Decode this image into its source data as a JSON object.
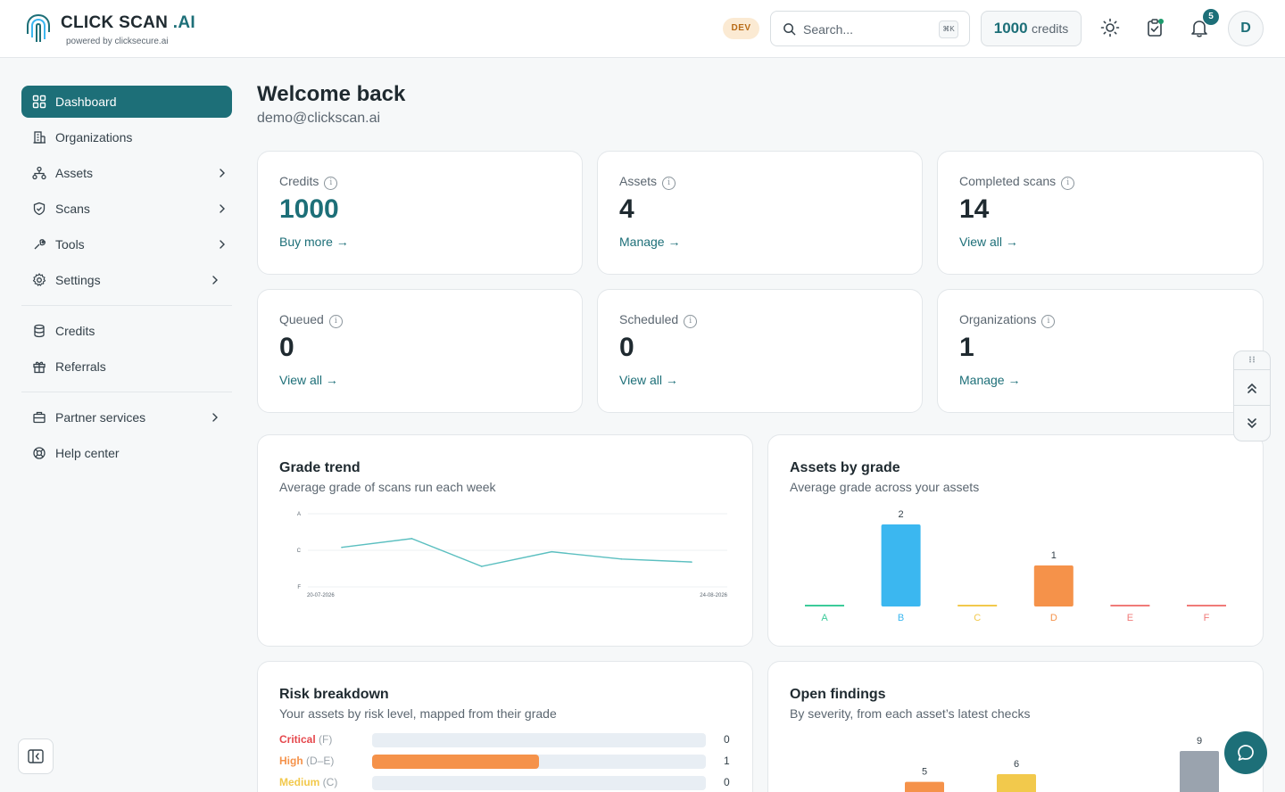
{
  "header": {
    "brand_main": "CLICK SCAN",
    "brand_ai": ".AI",
    "powered_by": "powered by clicksecure.ai",
    "env_badge": "DEV",
    "search_placeholder": "Search...",
    "search_shortcut": "⌘K",
    "credits_value": "1000",
    "credits_label": "credits",
    "notification_count": "5",
    "avatar_initial": "D",
    "icons": [
      "sun-icon",
      "clipboard-check-icon",
      "bell-icon"
    ]
  },
  "sidebar": {
    "items": [
      {
        "label": "Dashboard",
        "icon": "grid-icon",
        "active": true,
        "chevron": false
      },
      {
        "label": "Organizations",
        "icon": "building-icon",
        "active": false,
        "chevron": false
      },
      {
        "label": "Assets",
        "icon": "network-icon",
        "active": false,
        "chevron": true
      },
      {
        "label": "Scans",
        "icon": "shield-icon",
        "active": false,
        "chevron": true
      },
      {
        "label": "Tools",
        "icon": "wrench-icon",
        "active": false,
        "chevron": true
      },
      {
        "label": "Settings",
        "icon": "gear-icon",
        "active": false,
        "chevron": true
      },
      {
        "label": "Credits",
        "icon": "database-icon",
        "active": false,
        "chevron": false
      },
      {
        "label": "Referrals",
        "icon": "gift-icon",
        "active": false,
        "chevron": false
      },
      {
        "label": "Partner services",
        "icon": "briefcase-icon",
        "active": false,
        "chevron": true
      },
      {
        "label": "Help center",
        "icon": "lifebuoy-icon",
        "active": false,
        "chevron": false
      }
    ]
  },
  "main": {
    "welcome": "Welcome back",
    "email": "demo@clickscan.ai",
    "stats": [
      {
        "label": "Credits",
        "value": "1000",
        "link": "Buy more →"
      },
      {
        "label": "Assets",
        "value": "4",
        "link": "Manage →"
      },
      {
        "label": "Completed scans",
        "value": "14",
        "link": "View all →"
      },
      {
        "label": "Queued",
        "value": "0",
        "link": "View all →"
      },
      {
        "label": "Scheduled",
        "value": "0",
        "link": "View all →"
      },
      {
        "label": "Organizations",
        "value": "1",
        "link": "Manage →"
      }
    ],
    "grade_trend": {
      "title": "Grade trend",
      "subtitle": "Average grade of scans run each week"
    },
    "assets_by_grade": {
      "title": "Assets by grade",
      "subtitle": "Average grade across your assets"
    },
    "risk_breakdown": {
      "title": "Risk breakdown",
      "subtitle": "Your assets by risk level, mapped from their grade",
      "rows": [
        {
          "name": "Critical",
          "grade": "(F)",
          "count": "0",
          "fraction": 0,
          "color": "#e5484d"
        },
        {
          "name": "High",
          "grade": "(D–E)",
          "count": "1",
          "fraction": 0.5,
          "color": "#f5924a"
        },
        {
          "name": "Medium",
          "grade": "(C)",
          "count": "0",
          "fraction": 0,
          "color": "#f2c94c"
        }
      ]
    },
    "open_findings": {
      "title": "Open findings",
      "subtitle": "By severity, from each asset’s latest checks"
    }
  },
  "chart_data": [
    {
      "type": "line",
      "y_ticks": [
        "A",
        "C",
        "F"
      ],
      "x_ticks": [
        "20-07-2026",
        "24-08-2026"
      ],
      "values": [
        2.3,
        1.7,
        3.6,
        2.6,
        3.1,
        3.3
      ],
      "y_scale": "0 = A (top), 5 = F (bottom)",
      "color": "#5bbfc0"
    },
    {
      "type": "bar",
      "categories": [
        "A",
        "B",
        "C",
        "D",
        "E",
        "F"
      ],
      "values": [
        0,
        2,
        0,
        1,
        0,
        0
      ],
      "colors": [
        "#3ccb9a",
        "#3bb7f0",
        "#f2c94c",
        "#f5924a",
        "#f07a78",
        "#f07a78"
      ],
      "ylim": [
        0,
        2
      ]
    },
    {
      "type": "bar",
      "values": [
        5,
        6,
        9
      ],
      "colors": [
        "#f5924a",
        "#f2c94c",
        "#9aa3ae"
      ],
      "ylim": [
        0,
        9
      ]
    }
  ]
}
